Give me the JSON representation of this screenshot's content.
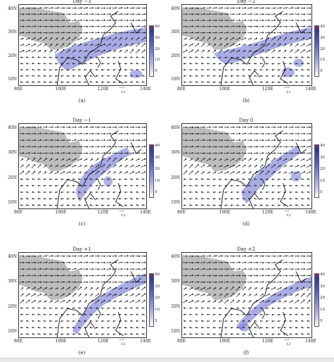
{
  "figure": {
    "panels": [
      {
        "title": "Day −3",
        "label": "(a)"
      },
      {
        "title": "Day −2",
        "label": "(b)"
      },
      {
        "title": "Day −1",
        "label": "(c)"
      },
      {
        "title": "Day 0",
        "label": "(d)"
      },
      {
        "title": "Day +1",
        "label": "(e)"
      },
      {
        "title": "Day +2",
        "label": "(f)"
      }
    ],
    "lat_ticks": [
      "40N",
      "30N",
      "20N",
      "10N"
    ],
    "lon_ticks": [
      "80E",
      "100E",
      "120E",
      "140E"
    ],
    "colorbar_ticks": [
      "40",
      "30",
      "20",
      "10",
      "5"
    ],
    "reference_vector": "12",
    "colors": {
      "land_gray": "#bdbdbd",
      "shade_blue": "#7b80d6",
      "vector": "#111111",
      "colorbar_top": "#8b2f6a",
      "colorbar_bottom": "#ffffff"
    }
  }
}
